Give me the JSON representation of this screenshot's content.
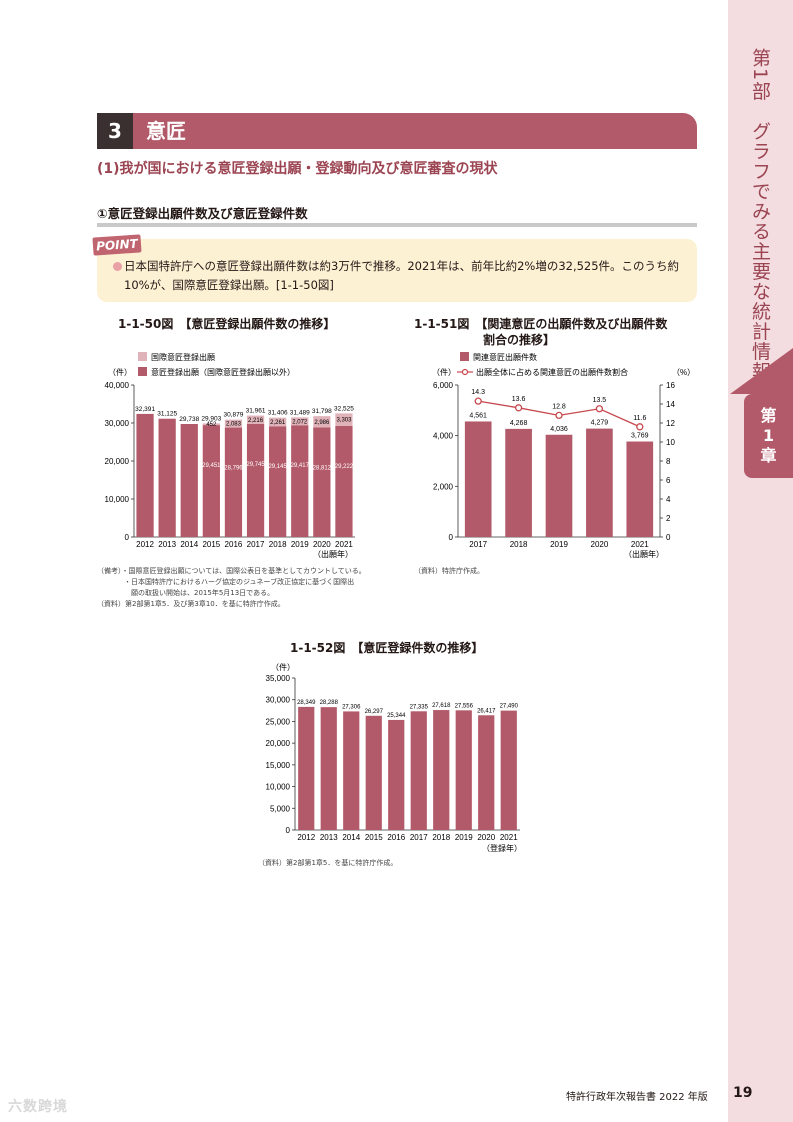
{
  "sidebar": {
    "part_label": "第1部　グラフでみる主要な統計情報",
    "chapter_label_1": "第",
    "chapter_label_2": "1",
    "chapter_label_3": "章"
  },
  "section": {
    "number": "3",
    "title": "意匠",
    "subtitle": "(1)我が国における意匠登録出願・登録動向及び意匠審査の現状",
    "subsection": "①意匠登録出願件数及び意匠登録件数"
  },
  "point": {
    "tag": "POINT",
    "text": "日本国特許庁への意匠登録出願件数は約3万件で推移。2021年は、前年比約2%増の32,525件。このうち約10%が、国際意匠登録出願。[1-1-50図]"
  },
  "chart_data": [
    {
      "type": "bar",
      "title": "1-1-50図　【意匠登録出願件数の推移】",
      "categories": [
        "2012",
        "2013",
        "2014",
        "2015",
        "2016",
        "2017",
        "2018",
        "2019",
        "2020",
        "2021"
      ],
      "xlabel": "（出願年）",
      "ylabel": "（件）",
      "ylim": [
        0,
        40000
      ],
      "yticks": [
        0,
        10000,
        20000,
        30000,
        40000
      ],
      "ytick_labels": [
        "0",
        "10,000",
        "20,000",
        "30,000",
        "40,000"
      ],
      "stacked": true,
      "series": [
        {
          "name": "意匠登録出願（国際意匠登録出願以外）",
          "color": "#b35a6a",
          "values": [
            32391,
            31125,
            29738,
            29451,
            28796,
            29745,
            29145,
            29417,
            28812,
            29222
          ],
          "labels": [
            "32,391",
            "31,125",
            "29,738",
            "29,451",
            "28,796",
            "29,745",
            "29,145",
            "29,417",
            "28,812",
            "29,222"
          ]
        },
        {
          "name": "国際意匠登録出願",
          "color": "#e0b2b9",
          "values": [
            0,
            0,
            0,
            452,
            2083,
            2216,
            2261,
            2072,
            2986,
            3303
          ],
          "labels": [
            "",
            "",
            "",
            "452",
            "2,083",
            "2,216",
            "2,261",
            "2,072",
            "2,986",
            "3,303"
          ]
        }
      ],
      "totals": [
        "32,391",
        "31,125",
        "29,738",
        "29,903",
        "30,879",
        "31,961",
        "31,406",
        "31,489",
        "31,798",
        "32,525"
      ],
      "notes": [
        "（備考）・国際意匠登録出願については、国際公表日を基準としてカウントしている。",
        "・日本国特許庁におけるハーグ協定のジュネーブ改正協定に基づく国際出",
        "願の取扱い開始は、2015年5月13日である。",
        "（資料）第2部第1章5．及び第3章10．を基に特許庁作成。"
      ]
    },
    {
      "type": "bar",
      "title_line1": "1-1-51図　【関連意匠の出願件数及び出願件数",
      "title_line2": "割合の推移】",
      "categories": [
        "2017",
        "2018",
        "2019",
        "2020",
        "2021"
      ],
      "xlabel": "（出願年）",
      "ylabel": "（件）",
      "ylabel_right": "（%）",
      "ylim": [
        0,
        6000
      ],
      "ylim_right": [
        0,
        16
      ],
      "yticks": [
        0,
        2000,
        4000,
        6000
      ],
      "ytick_labels": [
        "0",
        "2,000",
        "4,000",
        "6,000"
      ],
      "yticks_right": [
        0,
        2,
        4,
        6,
        8,
        10,
        12,
        14,
        16
      ],
      "series": [
        {
          "name": "関連意匠出願件数",
          "type": "bar",
          "color": "#b35a6a",
          "values": [
            4561,
            4268,
            4036,
            4279,
            3769
          ],
          "labels": [
            "4,561",
            "4,268",
            "4,036",
            "4,279",
            "3,769"
          ]
        },
        {
          "name": "出願全体に占める関連意匠の出願件数割合",
          "type": "line",
          "axis": "right",
          "color": "#c8484f",
          "values": [
            14.3,
            13.6,
            12.8,
            13.5,
            11.6
          ],
          "labels": [
            "14.3",
            "13.6",
            "12.8",
            "13.5",
            "11.6"
          ]
        }
      ],
      "notes": [
        "（資料）特許庁作成。"
      ]
    },
    {
      "type": "bar",
      "title": "1-1-52図　【意匠登録件数の推移】",
      "categories": [
        "2012",
        "2013",
        "2014",
        "2015",
        "2016",
        "2017",
        "2018",
        "2019",
        "2020",
        "2021"
      ],
      "xlabel": "（登録年）",
      "ylabel": "（件）",
      "ylim": [
        0,
        35000
      ],
      "yticks": [
        0,
        5000,
        10000,
        15000,
        20000,
        25000,
        30000,
        35000
      ],
      "ytick_labels": [
        "0",
        "5,000",
        "10,000",
        "15,000",
        "20,000",
        "25,000",
        "30,000",
        "35,000"
      ],
      "series": [
        {
          "name": "",
          "color": "#b35a6a",
          "values": [
            28349,
            28288,
            27306,
            26297,
            25344,
            27335,
            27618,
            27556,
            26417,
            27490
          ],
          "labels": [
            "28,349",
            "28,288",
            "27,306",
            "26,297",
            "25,344",
            "27,335",
            "27,618",
            "27,556",
            "26,417",
            "27,490"
          ]
        }
      ],
      "notes": [
        "（資料）第2部第1章5．を基に特許庁作成。"
      ]
    }
  ],
  "footer": {
    "report": "特許行政年次報告書 2022 年版",
    "page": "19",
    "watermark": "六数跨境"
  }
}
